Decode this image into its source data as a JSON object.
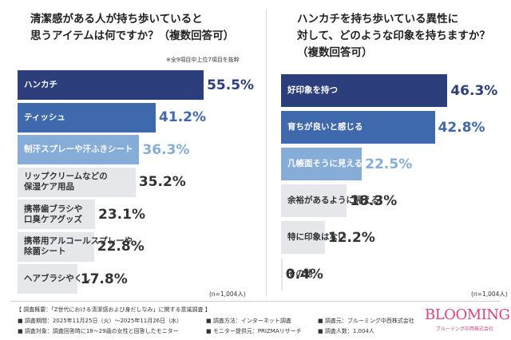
{
  "chart_data": [
    {
      "type": "hbar",
      "title": "清潔感がある人が持ち歩いていると\n思うアイテムは何ですか？（複数回答可）",
      "note": "※全9項目中上位7項目を抜粋",
      "categories": [
        "ハンカチ",
        "ティッシュ",
        "制汗スプレーや汗ふきシート",
        "リップクリームなどの\n保湿ケア用品",
        "携帯歯ブラシや\n口臭ケアグッズ",
        "携帯用アルコールスプレーや\n除菌シート",
        "ヘアブラシやくし"
      ],
      "values": [
        55.5,
        41.2,
        36.3,
        35.2,
        23.1,
        22.8,
        17.8
      ],
      "value_labels": [
        "55.5%",
        "41.2%",
        "36.3%",
        "35.2%",
        "23.1%",
        "22.8%",
        "17.8%"
      ],
      "colors": [
        "#2c3f7c",
        "#3f69ad",
        "#86acd8",
        "#e5e7eb",
        "#e5e7eb",
        "#e5e7eb",
        "#e5e7eb"
      ],
      "xlim": [
        0,
        70
      ],
      "sample": "(n=1,004人)"
    },
    {
      "type": "hbar",
      "title": "ハンカチを持ち歩いている異性に\n対して、どのような印象を持ちますか？\n（複数回答可）",
      "categories": [
        "好印象を持つ",
        "育ちが良いと感じる",
        "几帳面そうに見える",
        "余裕があるように見える",
        "特に印象はない",
        "その他"
      ],
      "values": [
        46.3,
        42.8,
        22.5,
        18.3,
        12.2,
        0.4
      ],
      "value_labels": [
        "46.3%",
        "42.8%",
        "22.5%",
        "18.3%",
        "12.2%",
        "0.4%"
      ],
      "colors": [
        "#2c3f7c",
        "#3f69ad",
        "#86acd8",
        "#e5e7eb",
        "#e5e7eb",
        "#e5e7eb"
      ],
      "xlim": [
        0,
        60
      ],
      "sample": "(n=1,004人)"
    }
  ],
  "footer": {
    "heading": "【 調査概要：「Z世代における清潔感および身だしなみ」に関する意識調査 】",
    "items": [
      "■ 調査期間：2025年11月25日（火）〜2025年11月26日（水）",
      "■ 調査方法：インターネット調査",
      "■ 調査元：ブルーミング中西株式会社",
      "■ 調査対象：調査回答時に18〜29歳の女性と回答したモニター",
      "■ モニター提供元：PRIZMAリサーチ",
      "■ 調査人数：1,004人"
    ],
    "logo": "BLOOMING",
    "logo_sub": "ブルーミング中西株式会社"
  }
}
